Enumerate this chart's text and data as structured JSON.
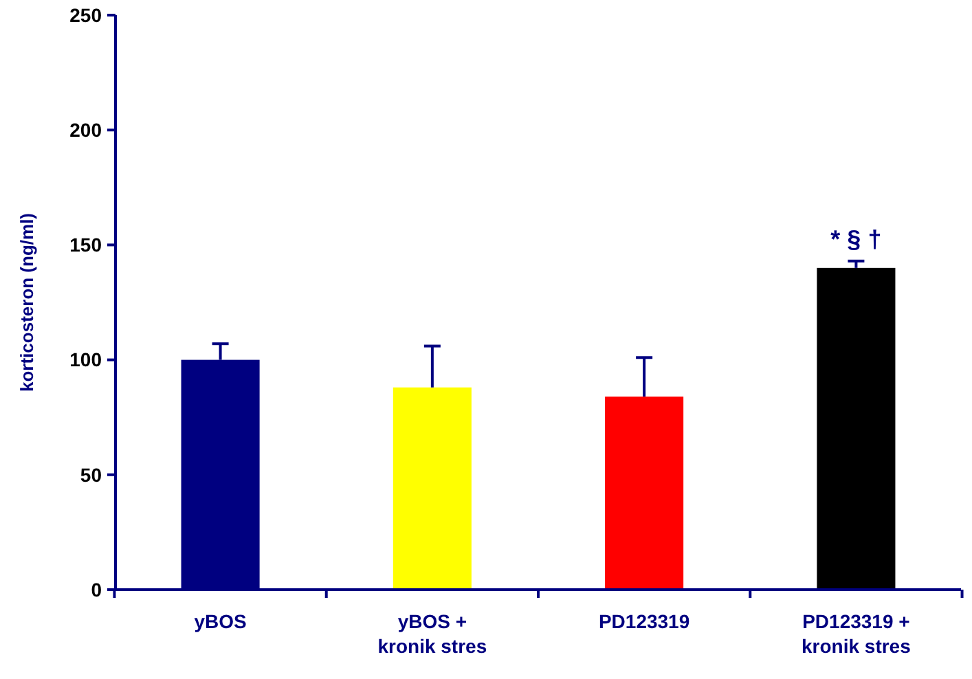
{
  "chart_data": {
    "type": "bar",
    "ylabel": "korticosteron (ng/ml)",
    "categories": [
      "yBOS",
      "yBOS +\nkronik stres",
      "PD123319",
      "PD123319 +\nkronik stres"
    ],
    "values": [
      100,
      88,
      84,
      140
    ],
    "colors": [
      "#000080",
      "#ffff00",
      "#ff0000",
      "#000000"
    ],
    "errors": [
      [
        100,
        107
      ],
      [
        88,
        106
      ],
      [
        84,
        101
      ],
      [
        140,
        143
      ]
    ],
    "ylim": [
      0,
      250
    ],
    "yticks": [
      0,
      50,
      100,
      150,
      200,
      250
    ],
    "grid": false,
    "annotations": [
      "* § †"
    ]
  }
}
